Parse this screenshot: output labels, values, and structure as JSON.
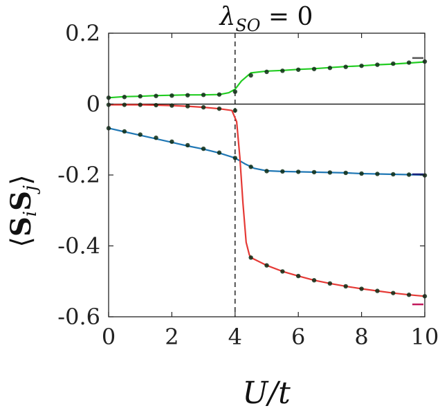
{
  "chart_data": {
    "type": "line",
    "title": "λSO = 0",
    "xlabel": "U/t",
    "ylabel": "⟨SiSj⟩",
    "xlim": [
      0,
      10
    ],
    "ylim": [
      -0.6,
      0.2
    ],
    "x_ticks": [
      0,
      2,
      4,
      6,
      8,
      10
    ],
    "x_tick_labels": [
      "0",
      "2",
      "4",
      "6",
      "8",
      "10"
    ],
    "y_ticks": [
      0.2,
      0,
      -0.2,
      -0.4,
      -0.6
    ],
    "y_tick_labels": [
      "0.2",
      "0",
      "-0.2",
      "-0.4",
      "-0.6"
    ],
    "grid": false,
    "reference_lines": [
      {
        "orientation": "horizontal",
        "y": 0,
        "style": "solid",
        "color": "#000000"
      },
      {
        "orientation": "vertical",
        "x": 4,
        "style": "dashed",
        "color": "#000000"
      }
    ],
    "series": [
      {
        "color": "#22cc22",
        "line": {
          "x": [
            0,
            0.5,
            1,
            1.5,
            2,
            2.5,
            3,
            3.5,
            3.8,
            4,
            4.2,
            4.5,
            5,
            5.5,
            6,
            6.5,
            7,
            7.5,
            8,
            8.5,
            9,
            9.5,
            10
          ],
          "y": [
            0.018,
            0.021,
            0.022,
            0.024,
            0.025,
            0.026,
            0.026,
            0.027,
            0.032,
            0.042,
            0.065,
            0.088,
            0.093,
            0.095,
            0.098,
            0.1,
            0.103,
            0.106,
            0.108,
            0.111,
            0.113,
            0.116,
            0.119
          ]
        },
        "points": {
          "x": [
            0,
            0.5,
            1,
            1.5,
            2,
            2.5,
            3,
            3.5,
            4,
            4.5,
            5,
            5.5,
            6,
            6.5,
            7,
            7.5,
            8,
            8.5,
            9,
            9.5,
            10
          ],
          "y": [
            0.018,
            0.02,
            0.022,
            0.023,
            0.024,
            0.025,
            0.026,
            0.027,
            0.035,
            0.081,
            0.091,
            0.094,
            0.097,
            0.099,
            0.102,
            0.105,
            0.108,
            0.111,
            0.114,
            0.117,
            0.12
          ]
        },
        "limit_marker": {
          "y": 0.13,
          "color": "#555555"
        }
      },
      {
        "color": "#1f77b4",
        "line": {
          "x": [
            0,
            0.5,
            1,
            1.5,
            2,
            2.5,
            3,
            3.5,
            4,
            4.3,
            4.6,
            5,
            5.5,
            6,
            6.5,
            7,
            7.5,
            8,
            8.5,
            9,
            9.5,
            10
          ],
          "y": [
            -0.068,
            -0.078,
            -0.088,
            -0.098,
            -0.108,
            -0.118,
            -0.127,
            -0.138,
            -0.152,
            -0.168,
            -0.181,
            -0.188,
            -0.19,
            -0.191,
            -0.192,
            -0.193,
            -0.194,
            -0.196,
            -0.197,
            -0.198,
            -0.199,
            -0.2
          ]
        },
        "points": {
          "x": [
            0,
            0.5,
            1,
            1.5,
            2,
            2.5,
            3,
            3.5,
            4,
            4.5,
            5,
            5.5,
            6,
            6.5,
            7,
            7.5,
            8,
            8.5,
            9,
            9.5,
            10
          ],
          "y": [
            -0.068,
            -0.077,
            -0.086,
            -0.095,
            -0.106,
            -0.116,
            -0.126,
            -0.137,
            -0.152,
            -0.177,
            -0.189,
            -0.19,
            -0.191,
            -0.192,
            -0.193,
            -0.194,
            -0.196,
            -0.197,
            -0.198,
            -0.199,
            -0.201
          ]
        },
        "limit_marker": {
          "y": -0.198,
          "color": "#1a237e"
        }
      },
      {
        "color": "#e53935",
        "line": {
          "x": [
            0,
            0.5,
            1,
            1.5,
            2,
            2.5,
            3,
            3.5,
            3.9,
            4.05,
            4.15,
            4.25,
            4.35,
            4.45,
            4.5,
            5,
            5.5,
            6,
            6.5,
            7,
            7.5,
            8,
            8.5,
            9,
            9.5,
            10
          ],
          "y": [
            -0.002,
            -0.002,
            -0.002,
            -0.003,
            -0.004,
            -0.006,
            -0.009,
            -0.013,
            -0.018,
            -0.05,
            -0.15,
            -0.28,
            -0.39,
            -0.425,
            -0.433,
            -0.455,
            -0.472,
            -0.485,
            -0.497,
            -0.506,
            -0.514,
            -0.521,
            -0.527,
            -0.533,
            -0.538,
            -0.542
          ]
        },
        "points": {
          "x": [
            0,
            0.5,
            1,
            1.5,
            2,
            2.5,
            3,
            3.5,
            4,
            4.5,
            5,
            5.5,
            6,
            6.5,
            7,
            7.5,
            8,
            8.5,
            9,
            9.5,
            10
          ],
          "y": [
            -0.002,
            -0.002,
            -0.002,
            -0.003,
            -0.004,
            -0.006,
            -0.009,
            -0.013,
            -0.018,
            -0.433,
            -0.455,
            -0.472,
            -0.485,
            -0.497,
            -0.506,
            -0.514,
            -0.521,
            -0.527,
            -0.533,
            -0.538,
            -0.542
          ]
        },
        "limit_marker": {
          "y": -0.565,
          "color": "#c2185b"
        }
      }
    ]
  }
}
